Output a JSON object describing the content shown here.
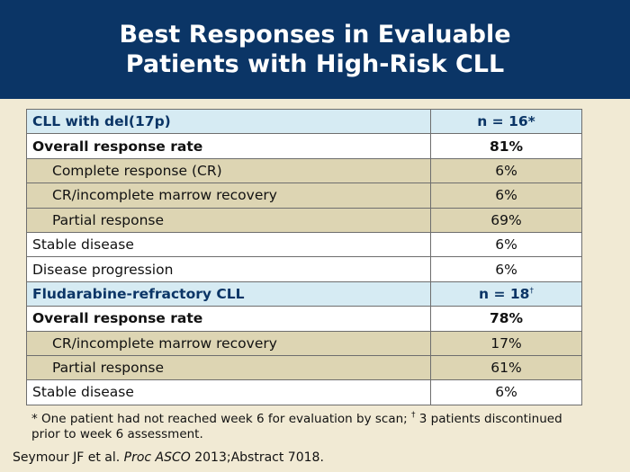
{
  "title": "Best Responses in Evaluable\nPatients with High-Risk CLL",
  "table": {
    "rows": [
      {
        "label": "CLL with del(17p)",
        "value": "n = 16*",
        "sup": "",
        "style": "hdr"
      },
      {
        "label": "Overall response rate",
        "value": "81%",
        "sup": "",
        "style": "bold"
      },
      {
        "label": "Complete response (CR)",
        "value": "6%",
        "sup": "",
        "style": "ind"
      },
      {
        "label": "CR/incomplete marrow recovery",
        "value": "6%",
        "sup": "",
        "style": "ind"
      },
      {
        "label": "Partial response",
        "value": "69%",
        "sup": "",
        "style": "ind"
      },
      {
        "label": "Stable disease",
        "value": "6%",
        "sup": "",
        "style": "plain"
      },
      {
        "label": "Disease progression",
        "value": "6%",
        "sup": "",
        "style": "plain"
      },
      {
        "label": "Fludarabine-refractory CLL",
        "value": "n = 18",
        "sup": "†",
        "style": "hdr"
      },
      {
        "label": "Overall response rate",
        "value": "78%",
        "sup": "",
        "style": "bold"
      },
      {
        "label": "CR/incomplete marrow recovery",
        "value": "17%",
        "sup": "",
        "style": "ind"
      },
      {
        "label": "Partial response",
        "value": "61%",
        "sup": "",
        "style": "ind"
      },
      {
        "label": "Stable disease",
        "value": "6%",
        "sup": "",
        "style": "plain"
      }
    ]
  },
  "footnote": {
    "mark1": "*",
    "text1": " One patient had not reached week 6 for evaluation by scan; ",
    "mark2": "†",
    "text2": " 3 patients discontinued prior to week 6 assessment."
  },
  "citation": {
    "authors": "Seymour JF et al. ",
    "journal": "Proc ASCO",
    "rest": " 2013;Abstract 7018."
  }
}
